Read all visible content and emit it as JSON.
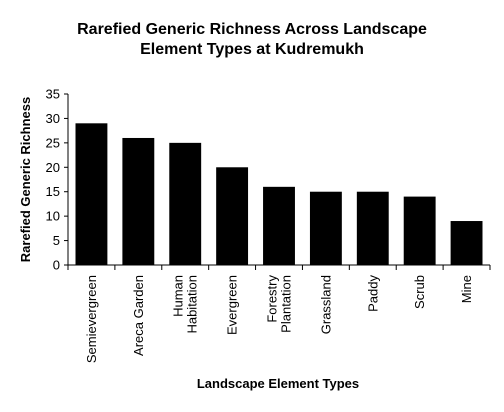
{
  "chart_data": {
    "type": "bar",
    "title_lines": [
      "Rarefied Generic Richness Across Landscape",
      "Element Types at Kudremukh"
    ],
    "xlabel": "Landscape Element Types",
    "ylabel": "Rarefied Generic Richness",
    "categories": [
      [
        "Semievergreen"
      ],
      [
        "Areca Garden"
      ],
      [
        "Human",
        "Habitation"
      ],
      [
        "Evergreen"
      ],
      [
        "Forestry",
        "Plantation"
      ],
      [
        "Grassland"
      ],
      [
        "Paddy"
      ],
      [
        "Scrub"
      ],
      [
        "Mine"
      ]
    ],
    "values": [
      29,
      26,
      25,
      20,
      16,
      15,
      15,
      14,
      9
    ],
    "ylim": [
      0,
      35
    ],
    "yticks": [
      "0",
      "5",
      "10",
      "15",
      "20",
      "25",
      "30",
      "35"
    ],
    "bar_color": "#000000",
    "grid": false,
    "legend": "none"
  }
}
